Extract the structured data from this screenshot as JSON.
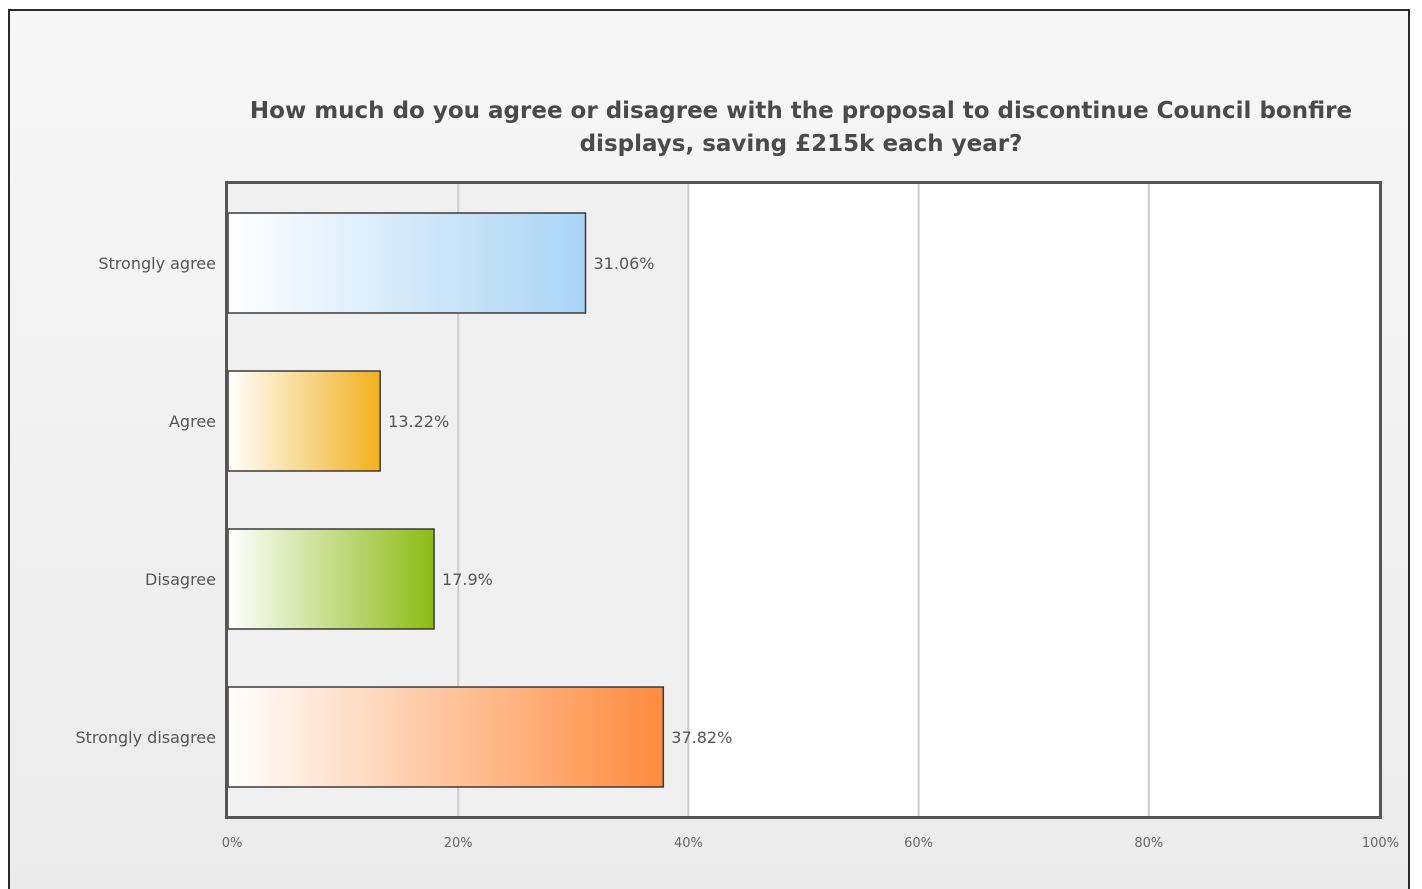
{
  "chart_data": {
    "type": "bar",
    "orientation": "horizontal",
    "title": "How much do you agree or disagree with the proposal to discontinue Council bonfire displays, saving £215k each year?",
    "categories": [
      "Strongly agree",
      "Agree",
      "Disagree",
      "Strongly disagree"
    ],
    "values": [
      31.06,
      13.22,
      17.9,
      37.82
    ],
    "value_labels": [
      "31.06%",
      "13.22%",
      "17.9%",
      "37.82%"
    ],
    "colors": [
      "#a9d4f5",
      "#f2b01e",
      "#8cbb14",
      "#ff8a3d"
    ],
    "xlim": [
      0,
      100
    ],
    "x_ticks": [
      0,
      20,
      40,
      60,
      80,
      100
    ],
    "x_tick_labels": [
      "0%",
      "20%",
      "40%",
      "60%",
      "80%",
      "100%"
    ],
    "grid": true,
    "legend": "none"
  }
}
